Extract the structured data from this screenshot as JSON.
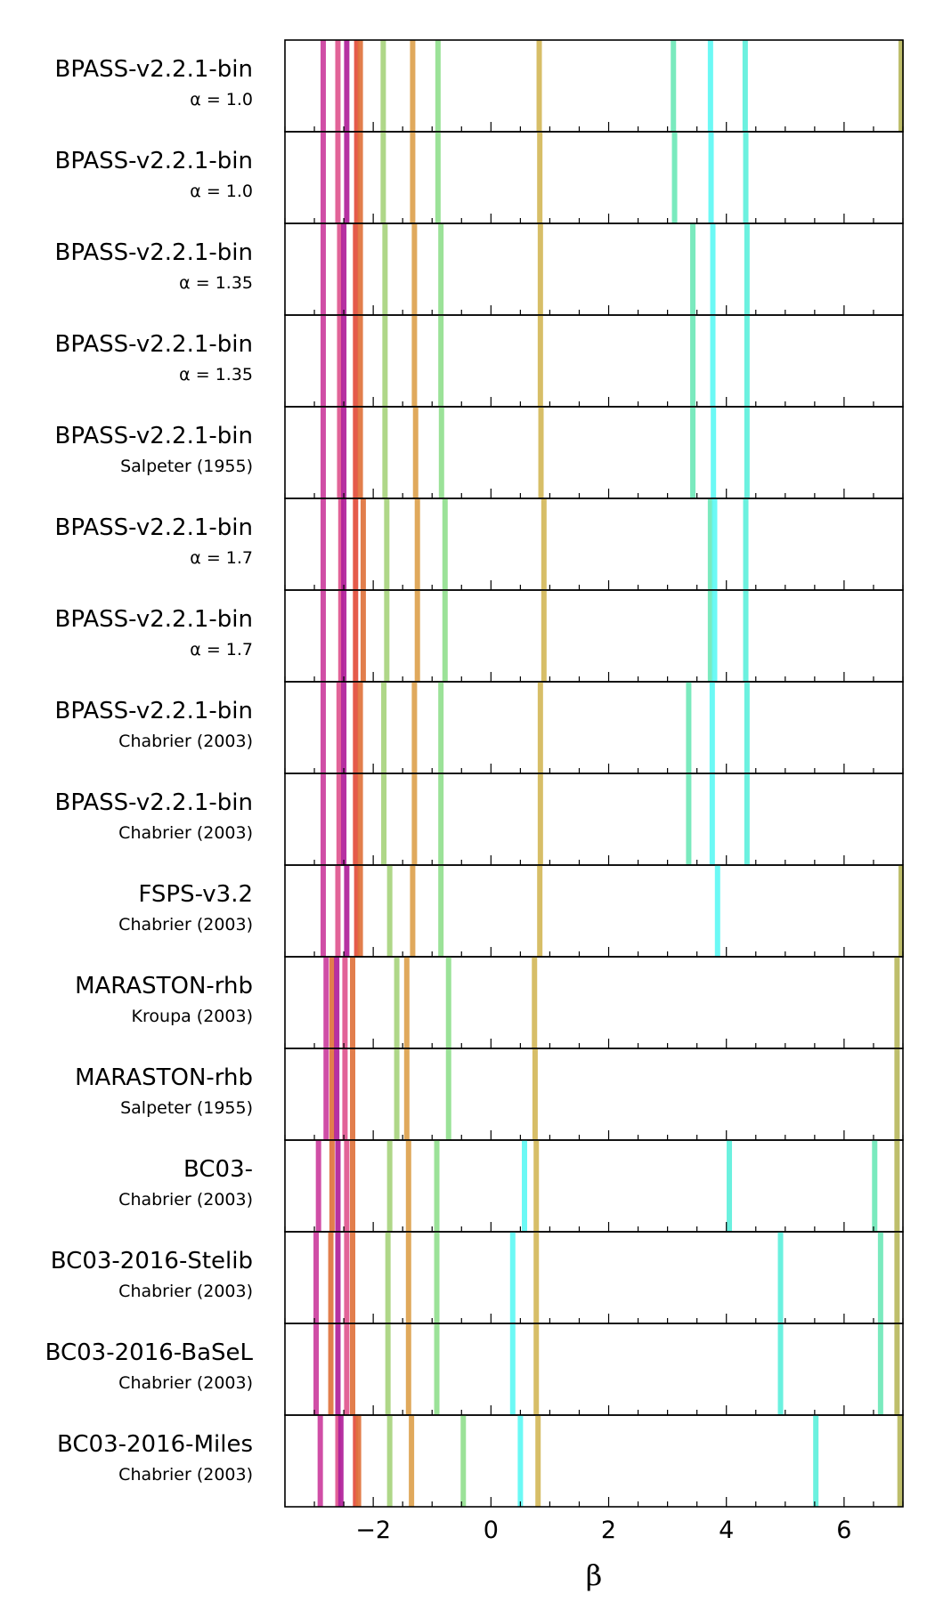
{
  "chart_data": {
    "type": "bar",
    "subtype": "vertical line markers per stellar population model",
    "xlabel": "β",
    "xlim": [
      -3.5,
      7.0
    ],
    "xticks": [
      -2,
      0,
      2,
      4,
      6
    ],
    "xtick_labels": [
      "−2",
      "0",
      "2",
      "4",
      "6"
    ],
    "minor_tick_step": 0.5,
    "grid": false,
    "legend": "none",
    "rows": [
      {
        "name": "BPASS-v2.2.1-bin",
        "sub": "α = 1.0",
        "lines": [
          {
            "x": -2.85,
            "color": "#cc3f9e"
          },
          {
            "x": -2.6,
            "color": "#e0568f"
          },
          {
            "x": -2.45,
            "color": "#b0209a"
          },
          {
            "x": -2.28,
            "color": "#e34d3c"
          },
          {
            "x": -2.22,
            "color": "#e0733d"
          },
          {
            "x": -1.83,
            "color": "#a8d47e"
          },
          {
            "x": -1.33,
            "color": "#dda24e"
          },
          {
            "x": -0.9,
            "color": "#93e08f"
          },
          {
            "x": 0.82,
            "color": "#d4b85a"
          },
          {
            "x": 3.1,
            "color": "#6fe8b8"
          },
          {
            "x": 3.73,
            "color": "#60f8f4"
          },
          {
            "x": 4.32,
            "color": "#5ef0dc"
          },
          {
            "x": 6.97,
            "color": "#b8b85e"
          }
        ]
      },
      {
        "name": "BPASS-v2.2.1-bin",
        "sub": "α = 1.0",
        "lines": [
          {
            "x": -2.85,
            "color": "#cc3f9e"
          },
          {
            "x": -2.6,
            "color": "#e0568f"
          },
          {
            "x": -2.45,
            "color": "#b0209a"
          },
          {
            "x": -2.28,
            "color": "#e34d3c"
          },
          {
            "x": -2.22,
            "color": "#e0733d"
          },
          {
            "x": -1.83,
            "color": "#a8d47e"
          },
          {
            "x": -1.33,
            "color": "#dda24e"
          },
          {
            "x": -0.9,
            "color": "#93e08f"
          },
          {
            "x": 0.83,
            "color": "#d4b85a"
          },
          {
            "x": 3.12,
            "color": "#6fe8b8"
          },
          {
            "x": 3.74,
            "color": "#60f8f4"
          },
          {
            "x": 4.33,
            "color": "#5ef0dc"
          }
        ]
      },
      {
        "name": "BPASS-v2.2.1-bin",
        "sub": "α = 1.35",
        "lines": [
          {
            "x": -2.85,
            "color": "#cc3f9e"
          },
          {
            "x": -2.57,
            "color": "#e0568f"
          },
          {
            "x": -2.5,
            "color": "#b0209a"
          },
          {
            "x": -2.3,
            "color": "#e34d3c"
          },
          {
            "x": -2.22,
            "color": "#e0733d"
          },
          {
            "x": -1.8,
            "color": "#a8d47e"
          },
          {
            "x": -1.3,
            "color": "#dda24e"
          },
          {
            "x": -0.85,
            "color": "#93e08f"
          },
          {
            "x": 0.84,
            "color": "#d4b85a"
          },
          {
            "x": 3.43,
            "color": "#6fe8b8"
          },
          {
            "x": 3.77,
            "color": "#60f8f4"
          },
          {
            "x": 4.35,
            "color": "#5ef0dc"
          }
        ]
      },
      {
        "name": "BPASS-v2.2.1-bin",
        "sub": "α = 1.35",
        "lines": [
          {
            "x": -2.85,
            "color": "#cc3f9e"
          },
          {
            "x": -2.57,
            "color": "#e0568f"
          },
          {
            "x": -2.5,
            "color": "#b0209a"
          },
          {
            "x": -2.3,
            "color": "#e34d3c"
          },
          {
            "x": -2.22,
            "color": "#e0733d"
          },
          {
            "x": -1.8,
            "color": "#a8d47e"
          },
          {
            "x": -1.3,
            "color": "#dda24e"
          },
          {
            "x": -0.85,
            "color": "#93e08f"
          },
          {
            "x": 0.84,
            "color": "#d4b85a"
          },
          {
            "x": 3.43,
            "color": "#6fe8b8"
          },
          {
            "x": 3.77,
            "color": "#60f8f4"
          },
          {
            "x": 4.35,
            "color": "#5ef0dc"
          }
        ]
      },
      {
        "name": "BPASS-v2.2.1-bin",
        "sub": "Salpeter (1955)",
        "lines": [
          {
            "x": -2.85,
            "color": "#cc3f9e"
          },
          {
            "x": -2.57,
            "color": "#e0568f"
          },
          {
            "x": -2.5,
            "color": "#b0209a"
          },
          {
            "x": -2.3,
            "color": "#e34d3c"
          },
          {
            "x": -2.22,
            "color": "#e0733d"
          },
          {
            "x": -1.8,
            "color": "#a8d47e"
          },
          {
            "x": -1.28,
            "color": "#dda24e"
          },
          {
            "x": -0.84,
            "color": "#93e08f"
          },
          {
            "x": 0.85,
            "color": "#d4b85a"
          },
          {
            "x": 3.43,
            "color": "#6fe8b8"
          },
          {
            "x": 3.78,
            "color": "#60f8f4"
          },
          {
            "x": 4.35,
            "color": "#5ef0dc"
          }
        ]
      },
      {
        "name": "BPASS-v2.2.1-bin",
        "sub": "α = 1.7",
        "lines": [
          {
            "x": -2.85,
            "color": "#cc3f9e"
          },
          {
            "x": -2.55,
            "color": "#e0568f"
          },
          {
            "x": -2.5,
            "color": "#b0209a"
          },
          {
            "x": -2.3,
            "color": "#e34d3c"
          },
          {
            "x": -2.17,
            "color": "#e0733d"
          },
          {
            "x": -1.77,
            "color": "#a8d47e"
          },
          {
            "x": -1.25,
            "color": "#dda24e"
          },
          {
            "x": -0.78,
            "color": "#93e08f"
          },
          {
            "x": 0.9,
            "color": "#d4b85a"
          },
          {
            "x": 3.73,
            "color": "#6fe8b8"
          },
          {
            "x": 3.8,
            "color": "#60f8f4"
          },
          {
            "x": 4.33,
            "color": "#5ef0dc"
          }
        ]
      },
      {
        "name": "BPASS-v2.2.1-bin",
        "sub": "α = 1.7",
        "lines": [
          {
            "x": -2.85,
            "color": "#cc3f9e"
          },
          {
            "x": -2.55,
            "color": "#e0568f"
          },
          {
            "x": -2.5,
            "color": "#b0209a"
          },
          {
            "x": -2.3,
            "color": "#e34d3c"
          },
          {
            "x": -2.17,
            "color": "#e0733d"
          },
          {
            "x": -1.77,
            "color": "#a8d47e"
          },
          {
            "x": -1.25,
            "color": "#dda24e"
          },
          {
            "x": -0.78,
            "color": "#93e08f"
          },
          {
            "x": 0.9,
            "color": "#d4b85a"
          },
          {
            "x": 3.73,
            "color": "#6fe8b8"
          },
          {
            "x": 3.8,
            "color": "#60f8f4"
          },
          {
            "x": 4.33,
            "color": "#5ef0dc"
          }
        ]
      },
      {
        "name": "BPASS-v2.2.1-bin",
        "sub": "Chabrier (2003)",
        "lines": [
          {
            "x": -2.85,
            "color": "#cc3f9e"
          },
          {
            "x": -2.58,
            "color": "#e0568f"
          },
          {
            "x": -2.5,
            "color": "#b0209a"
          },
          {
            "x": -2.3,
            "color": "#e34d3c"
          },
          {
            "x": -2.22,
            "color": "#e0733d"
          },
          {
            "x": -1.82,
            "color": "#a8d47e"
          },
          {
            "x": -1.3,
            "color": "#dda24e"
          },
          {
            "x": -0.85,
            "color": "#93e08f"
          },
          {
            "x": 0.84,
            "color": "#d4b85a"
          },
          {
            "x": 3.36,
            "color": "#6fe8b8"
          },
          {
            "x": 3.76,
            "color": "#60f8f4"
          },
          {
            "x": 4.35,
            "color": "#5ef0dc"
          }
        ]
      },
      {
        "name": "BPASS-v2.2.1-bin",
        "sub": "Chabrier (2003)",
        "lines": [
          {
            "x": -2.85,
            "color": "#cc3f9e"
          },
          {
            "x": -2.58,
            "color": "#e0568f"
          },
          {
            "x": -2.5,
            "color": "#b0209a"
          },
          {
            "x": -2.3,
            "color": "#e34d3c"
          },
          {
            "x": -2.22,
            "color": "#e0733d"
          },
          {
            "x": -1.82,
            "color": "#a8d47e"
          },
          {
            "x": -1.3,
            "color": "#dda24e"
          },
          {
            "x": -0.85,
            "color": "#93e08f"
          },
          {
            "x": 0.84,
            "color": "#d4b85a"
          },
          {
            "x": 3.36,
            "color": "#6fe8b8"
          },
          {
            "x": 3.76,
            "color": "#60f8f4"
          },
          {
            "x": 4.35,
            "color": "#5ef0dc"
          }
        ]
      },
      {
        "name": "FSPS-v3.2",
        "sub": "Chabrier (2003)",
        "lines": [
          {
            "x": -2.85,
            "color": "#cc3f9e"
          },
          {
            "x": -2.6,
            "color": "#e0568f"
          },
          {
            "x": -2.45,
            "color": "#b0209a"
          },
          {
            "x": -2.28,
            "color": "#e34d3c"
          },
          {
            "x": -2.22,
            "color": "#e0733d"
          },
          {
            "x": -1.72,
            "color": "#a8d47e"
          },
          {
            "x": -1.33,
            "color": "#dda24e"
          },
          {
            "x": -0.85,
            "color": "#93e08f"
          },
          {
            "x": 0.83,
            "color": "#d4b85a"
          },
          {
            "x": 3.85,
            "color": "#60f8f4"
          },
          {
            "x": 6.97,
            "color": "#b8b85e"
          }
        ]
      },
      {
        "name": "MARASTON-rhb",
        "sub": "Kroupa (2003)",
        "lines": [
          {
            "x": -2.8,
            "color": "#cc3f9e"
          },
          {
            "x": -2.7,
            "color": "#e0733d"
          },
          {
            "x": -2.62,
            "color": "#b0209a"
          },
          {
            "x": -2.48,
            "color": "#e0568f"
          },
          {
            "x": -2.35,
            "color": "#e0733d"
          },
          {
            "x": -1.6,
            "color": "#a8d47e"
          },
          {
            "x": -1.43,
            "color": "#dda24e"
          },
          {
            "x": -0.72,
            "color": "#93e08f"
          },
          {
            "x": 0.74,
            "color": "#d4b85a"
          },
          {
            "x": 6.9,
            "color": "#b8b85e"
          }
        ]
      },
      {
        "name": "MARASTON-rhb",
        "sub": "Salpeter (1955)",
        "lines": [
          {
            "x": -2.8,
            "color": "#cc3f9e"
          },
          {
            "x": -2.7,
            "color": "#e0733d"
          },
          {
            "x": -2.62,
            "color": "#b0209a"
          },
          {
            "x": -2.48,
            "color": "#e0568f"
          },
          {
            "x": -2.35,
            "color": "#e0733d"
          },
          {
            "x": -1.6,
            "color": "#a8d47e"
          },
          {
            "x": -1.43,
            "color": "#dda24e"
          },
          {
            "x": -0.72,
            "color": "#93e08f"
          },
          {
            "x": 0.75,
            "color": "#d4b85a"
          },
          {
            "x": 6.9,
            "color": "#b8b85e"
          }
        ]
      },
      {
        "name": "BC03-",
        "sub": "Chabrier (2003)",
        "lines": [
          {
            "x": -2.93,
            "color": "#cc3f9e"
          },
          {
            "x": -2.7,
            "color": "#e0733d"
          },
          {
            "x": -2.6,
            "color": "#b0209a"
          },
          {
            "x": -2.45,
            "color": "#e0568f"
          },
          {
            "x": -2.35,
            "color": "#e0733d"
          },
          {
            "x": -1.72,
            "color": "#a8d47e"
          },
          {
            "x": -1.4,
            "color": "#dda24e"
          },
          {
            "x": -0.92,
            "color": "#93e08f"
          },
          {
            "x": 0.57,
            "color": "#60f8f4"
          },
          {
            "x": 0.77,
            "color": "#d4b85a"
          },
          {
            "x": 4.05,
            "color": "#5ef0dc"
          },
          {
            "x": 6.52,
            "color": "#6fe8b8"
          },
          {
            "x": 6.9,
            "color": "#b8b85e"
          }
        ]
      },
      {
        "name": "BC03-2016-Stelib",
        "sub": "Chabrier (2003)",
        "lines": [
          {
            "x": -2.97,
            "color": "#cc3f9e"
          },
          {
            "x": -2.72,
            "color": "#e0733d"
          },
          {
            "x": -2.6,
            "color": "#b0209a"
          },
          {
            "x": -2.45,
            "color": "#e0568f"
          },
          {
            "x": -2.35,
            "color": "#e0733d"
          },
          {
            "x": -1.75,
            "color": "#a8d47e"
          },
          {
            "x": -1.4,
            "color": "#dda24e"
          },
          {
            "x": -0.92,
            "color": "#93e08f"
          },
          {
            "x": 0.37,
            "color": "#60f8f4"
          },
          {
            "x": 0.77,
            "color": "#d4b85a"
          },
          {
            "x": 4.92,
            "color": "#5ef0dc"
          },
          {
            "x": 6.62,
            "color": "#6fe8b8"
          },
          {
            "x": 6.9,
            "color": "#b8b85e"
          }
        ]
      },
      {
        "name": "BC03-2016-BaSeL",
        "sub": "Chabrier (2003)",
        "lines": [
          {
            "x": -2.97,
            "color": "#cc3f9e"
          },
          {
            "x": -2.72,
            "color": "#e0733d"
          },
          {
            "x": -2.6,
            "color": "#b0209a"
          },
          {
            "x": -2.45,
            "color": "#e0568f"
          },
          {
            "x": -2.35,
            "color": "#e0733d"
          },
          {
            "x": -1.75,
            "color": "#a8d47e"
          },
          {
            "x": -1.4,
            "color": "#dda24e"
          },
          {
            "x": -0.92,
            "color": "#93e08f"
          },
          {
            "x": 0.37,
            "color": "#60f8f4"
          },
          {
            "x": 0.77,
            "color": "#d4b85a"
          },
          {
            "x": 4.92,
            "color": "#5ef0dc"
          },
          {
            "x": 6.62,
            "color": "#6fe8b8"
          },
          {
            "x": 6.9,
            "color": "#b8b85e"
          }
        ]
      },
      {
        "name": "BC03-2016-Miles",
        "sub": "Chabrier (2003)",
        "lines": [
          {
            "x": -2.9,
            "color": "#cc3f9e"
          },
          {
            "x": -2.6,
            "color": "#e0568f"
          },
          {
            "x": -2.55,
            "color": "#b0209a"
          },
          {
            "x": -2.3,
            "color": "#e34d3c"
          },
          {
            "x": -2.25,
            "color": "#e0733d"
          },
          {
            "x": -1.72,
            "color": "#a8d47e"
          },
          {
            "x": -1.35,
            "color": "#dda24e"
          },
          {
            "x": -0.47,
            "color": "#93e08f"
          },
          {
            "x": 0.5,
            "color": "#60f8f4"
          },
          {
            "x": 0.8,
            "color": "#d4b85a"
          },
          {
            "x": 5.52,
            "color": "#5ef0dc"
          },
          {
            "x": 6.95,
            "color": "#b8b85e"
          }
        ]
      }
    ]
  }
}
